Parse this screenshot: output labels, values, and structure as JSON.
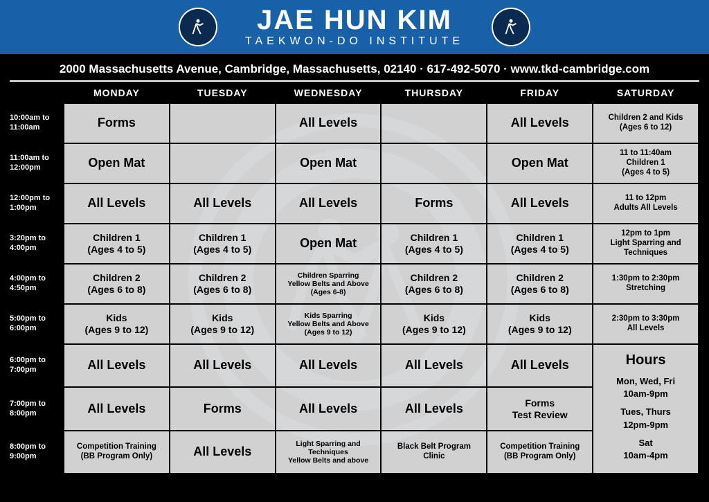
{
  "colors": {
    "header_bg": "#1860a8",
    "page_bg": "#000000",
    "text_light": "#ffffff",
    "text_dark": "#000000",
    "cell_bg": "rgba(255,255,255,0.82)",
    "border": "#000000",
    "watermark": "#6c88bc"
  },
  "header": {
    "title": "JAE HUN KIM",
    "subtitle": "TAEKWON-DO INSTITUTE"
  },
  "contact": "2000 Massachusetts Avenue, Cambridge, Massachusetts, 02140  ·  617-492-5070  ·  www.tkd-cambridge.com",
  "days": [
    "MONDAY",
    "TUESDAY",
    "WEDNESDAY",
    "THURSDAY",
    "FRIDAY",
    "SATURDAY"
  ],
  "times": [
    "10:00am to\n11:00am",
    "11:00am to\n12:00pm",
    "12:00pm to\n1:00pm",
    "3:20pm to\n4:00pm",
    "4:00pm to\n4:50pm",
    "5:00pm to\n6:00pm",
    "6:00pm to\n7:00pm",
    "7:00pm to\n8:00pm",
    "8:00pm to\n9:00pm"
  ],
  "grid": [
    [
      {
        "t": "Forms",
        "c": "big"
      },
      {
        "t": ""
      },
      {
        "t": "All Levels",
        "c": "big"
      },
      {
        "t": ""
      },
      {
        "t": "All Levels",
        "c": "big"
      },
      {
        "t": "Children 2 and Kids\n(Ages 6 to 12)",
        "c": "small"
      }
    ],
    [
      {
        "t": "Open Mat",
        "c": "big"
      },
      {
        "t": ""
      },
      {
        "t": "Open Mat",
        "c": "big"
      },
      {
        "t": ""
      },
      {
        "t": "Open Mat",
        "c": "big"
      },
      {
        "t": "11 to 11:40am\nChildren 1\n(Ages 4 to 5)",
        "c": "small"
      }
    ],
    [
      {
        "t": "All Levels",
        "c": "big"
      },
      {
        "t": "All Levels",
        "c": "big"
      },
      {
        "t": "All Levels",
        "c": "big"
      },
      {
        "t": "Forms",
        "c": "big"
      },
      {
        "t": "All Levels",
        "c": "big"
      },
      {
        "t": "11 to 12pm\nAdults All Levels",
        "c": "small"
      }
    ],
    [
      {
        "t": "Children 1\n(Ages 4 to 5)"
      },
      {
        "t": "Children 1\n(Ages 4 to 5)"
      },
      {
        "t": "Open Mat",
        "c": "big"
      },
      {
        "t": "Children 1\n(Ages 4 to 5)"
      },
      {
        "t": "Children 1\n(Ages 4 to 5)"
      },
      {
        "t": "12pm to 1pm\nLight Sparring and\nTechniques",
        "c": "small"
      }
    ],
    [
      {
        "t": "Children 2\n(Ages 6 to 8)"
      },
      {
        "t": "Children 2\n(Ages 6 to 8)"
      },
      {
        "t": "Children Sparring\nYellow Belts and Above\n(Ages 6-8)",
        "c": "tiny"
      },
      {
        "t": "Children 2\n(Ages 6 to 8)"
      },
      {
        "t": "Children 2\n(Ages 6 to 8)"
      },
      {
        "t": "1:30pm to 2:30pm\nStretching",
        "c": "small"
      }
    ],
    [
      {
        "t": "Kids\n(Ages 9 to 12)"
      },
      {
        "t": "Kids\n(Ages 9 to 12)"
      },
      {
        "t": "Kids Sparring\nYellow Belts and Above\n(Ages 9 to 12)",
        "c": "tiny"
      },
      {
        "t": "Kids\n(Ages 9 to 12)"
      },
      {
        "t": "Kids\n(Ages 9 to 12)"
      },
      {
        "t": "2:30pm to 3:30pm\nAll Levels",
        "c": "small"
      }
    ],
    [
      {
        "t": "All Levels",
        "c": "big"
      },
      {
        "t": "All Levels",
        "c": "big"
      },
      {
        "t": "All Levels",
        "c": "big"
      },
      {
        "t": "All Levels",
        "c": "big"
      },
      {
        "t": "All Levels",
        "c": "big"
      },
      {
        "hours": true
      }
    ],
    [
      {
        "t": "All Levels",
        "c": "big"
      },
      {
        "t": "Forms",
        "c": "big"
      },
      {
        "t": "All Levels",
        "c": "big"
      },
      {
        "t": "All Levels",
        "c": "big"
      },
      {
        "t": "Forms\nTest Review"
      },
      null
    ],
    [
      {
        "t": "Competition Training\n(BB Program Only)",
        "c": "small"
      },
      {
        "t": "All Levels",
        "c": "big"
      },
      {
        "t": "Light Sparring and\nTechniques\nYellow Belts and above",
        "c": "tiny"
      },
      {
        "t": "Black Belt Program\nClinic",
        "c": "small"
      },
      {
        "t": "Competition Training\n(BB Program Only)",
        "c": "small"
      },
      null
    ]
  ],
  "hours": {
    "title": "Hours",
    "lines": [
      "Mon, Wed, Fri\n10am-9pm",
      "Tues, Thurs\n12pm-9pm",
      "Sat\n10am-4pm"
    ]
  }
}
